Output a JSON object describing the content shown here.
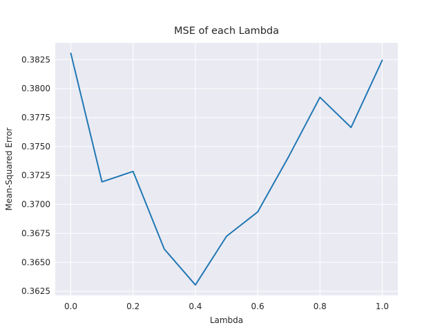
{
  "chart_data": {
    "type": "line",
    "title": "MSE of each Lambda",
    "xlabel": "Lambda",
    "ylabel": "Mean-Squared Error",
    "x": [
      0.0,
      0.1,
      0.2,
      0.3,
      0.4,
      0.5,
      0.6,
      0.7,
      0.8,
      0.9,
      1.0
    ],
    "series": [
      {
        "values": [
          0.38305,
          0.37195,
          0.37285,
          0.36615,
          0.36305,
          0.36725,
          0.36935,
          0.37415,
          0.37925,
          0.37665,
          0.38245
        ],
        "color": "#1f77b4"
      }
    ],
    "xlim": [
      -0.05,
      1.05
    ],
    "ylim": [
      0.36215,
      0.38395
    ],
    "xticks": [
      0.0,
      0.2,
      0.4,
      0.6,
      0.8,
      1.0
    ],
    "xtick_labels": [
      "0.0",
      "0.2",
      "0.4",
      "0.6",
      "0.8",
      "1.0"
    ],
    "yticks": [
      0.3625,
      0.365,
      0.3675,
      0.37,
      0.3725,
      0.375,
      0.3775,
      0.38,
      0.3825
    ],
    "ytick_labels": [
      "0.3625",
      "0.3650",
      "0.3675",
      "0.3700",
      "0.3725",
      "0.3750",
      "0.3775",
      "0.3800",
      "0.3825"
    ],
    "grid": true,
    "background": "#eaeaf2",
    "grid_color": "#ffffff"
  }
}
